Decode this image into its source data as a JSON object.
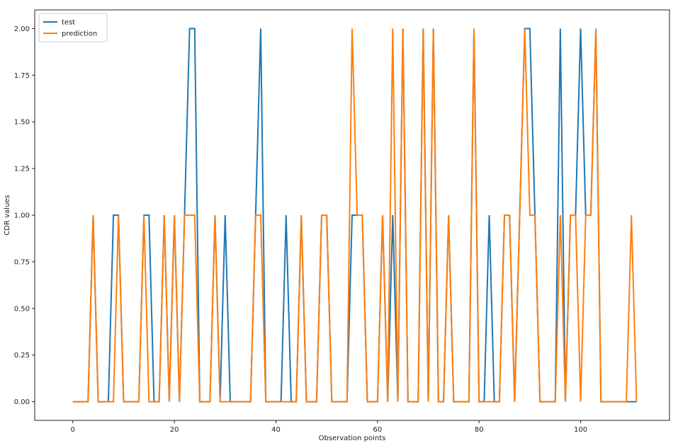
{
  "chart_data": {
    "type": "line",
    "xlabel": "Observation points",
    "ylabel": "CDR values",
    "xlim": [
      -7.5,
      117.5
    ],
    "ylim": [
      -0.1,
      2.1
    ],
    "xticks": [
      0,
      20,
      40,
      60,
      80,
      100
    ],
    "yticks": [
      0.0,
      0.25,
      0.5,
      0.75,
      1.0,
      1.25,
      1.5,
      1.75,
      2.0
    ],
    "ytick_labels": [
      "0.00",
      "0.25",
      "0.50",
      "0.75",
      "1.00",
      "1.25",
      "1.50",
      "1.75",
      "2.00"
    ],
    "grid": false,
    "legend_position": "top-left",
    "x": [
      0,
      1,
      2,
      3,
      4,
      5,
      6,
      7,
      8,
      9,
      10,
      11,
      12,
      13,
      14,
      15,
      16,
      17,
      18,
      19,
      20,
      21,
      22,
      23,
      24,
      25,
      26,
      27,
      28,
      29,
      30,
      31,
      32,
      33,
      34,
      35,
      36,
      37,
      38,
      39,
      40,
      41,
      42,
      43,
      44,
      45,
      46,
      47,
      48,
      49,
      50,
      51,
      52,
      53,
      54,
      55,
      56,
      57,
      58,
      59,
      60,
      61,
      62,
      63,
      64,
      65,
      66,
      67,
      68,
      69,
      70,
      71,
      72,
      73,
      74,
      75,
      76,
      77,
      78,
      79,
      80,
      81,
      82,
      83,
      84,
      85,
      86,
      87,
      88,
      89,
      90,
      91,
      92,
      93,
      94,
      95,
      96,
      97,
      98,
      99,
      100,
      101,
      102,
      103,
      104,
      105,
      106,
      107,
      108,
      109,
      110,
      111
    ],
    "series": [
      {
        "name": "test",
        "color": "#1f77b4",
        "values": [
          0,
          0,
          0,
          0,
          1,
          0,
          0,
          0,
          1,
          1,
          0,
          0,
          0,
          0,
          1,
          1,
          0,
          0,
          1,
          0,
          1,
          0,
          1,
          2,
          2,
          0,
          0,
          0,
          1,
          0,
          1,
          0,
          0,
          0,
          0,
          0,
          1,
          2,
          0,
          0,
          0,
          0,
          1,
          0,
          0,
          1,
          0,
          0,
          0,
          1,
          1,
          0,
          0,
          0,
          0,
          1,
          1,
          1,
          0,
          0,
          0,
          1,
          0,
          1,
          0,
          2,
          0,
          0,
          0,
          2,
          0,
          2,
          0,
          0,
          1,
          0,
          0,
          0,
          0,
          2,
          0,
          0,
          1,
          0,
          0,
          1,
          1,
          0,
          1,
          2,
          2,
          1,
          0,
          0,
          0,
          0,
          2,
          0,
          1,
          1,
          2,
          1,
          1,
          2,
          0,
          0,
          0,
          0,
          0,
          0,
          0,
          0
        ]
      },
      {
        "name": "prediction",
        "color": "#ff7f0e",
        "values": [
          0,
          0,
          0,
          0,
          1,
          0,
          0,
          0,
          0,
          1,
          0,
          0,
          0,
          0,
          1,
          0,
          0,
          0,
          1,
          0,
          1,
          0,
          1,
          1,
          1,
          0,
          0,
          0,
          1,
          0,
          0,
          0,
          0,
          0,
          0,
          0,
          1,
          1,
          0,
          0,
          0,
          0,
          0,
          0,
          0,
          1,
          0,
          0,
          0,
          1,
          1,
          0,
          0,
          0,
          0,
          2,
          1,
          1,
          0,
          0,
          0,
          1,
          0,
          2,
          0,
          2,
          0,
          0,
          0,
          2,
          0,
          2,
          0,
          0,
          1,
          0,
          0,
          0,
          0,
          2,
          0,
          0,
          0,
          0,
          0,
          1,
          1,
          0,
          1,
          2,
          1,
          1,
          0,
          0,
          0,
          0,
          1,
          0,
          1,
          1,
          0,
          1,
          1,
          2,
          0,
          0,
          0,
          0,
          0,
          0,
          1,
          0
        ]
      }
    ]
  }
}
